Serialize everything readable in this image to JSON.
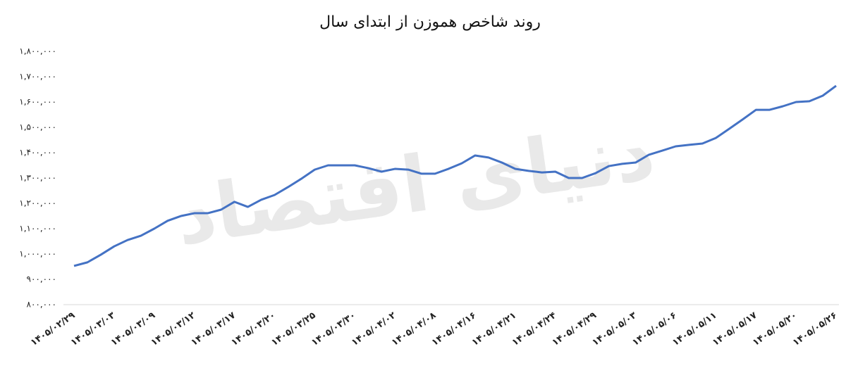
{
  "chart_data": {
    "type": "line",
    "title": "روند شاخص هموزن از ابتدای سال",
    "watermark": "دنیای اقتصاد",
    "categories": [
      "۱۴۰۵/۰۲/۲۹",
      null,
      null,
      "۱۴۰۵/۰۳/۰۳",
      null,
      null,
      "۱۴۰۵/۰۳/۰۹",
      null,
      null,
      "۱۴۰۵/۰۳/۱۲",
      null,
      null,
      "۱۴۰۵/۰۳/۱۷",
      null,
      null,
      "۱۴۰۵/۰۳/۲۰",
      null,
      null,
      "۱۴۰۵/۰۳/۲۵",
      null,
      null,
      "۱۴۰۵/۰۳/۳۰",
      null,
      null,
      "۱۴۰۵/۰۴/۰۲",
      null,
      null,
      "۱۴۰۵/۰۴/۰۸",
      null,
      null,
      "۱۴۰۵/۰۴/۱۶",
      null,
      null,
      "۱۴۰۵/۰۴/۲۱",
      null,
      null,
      "۱۴۰۵/۰۴/۲۴",
      null,
      null,
      "۱۴۰۵/۰۴/۲۹",
      null,
      null,
      "۱۴۰۵/۰۵/۰۳",
      null,
      null,
      "۱۴۰۵/۰۵/۰۶",
      null,
      null,
      "۱۴۰۵/۰۵/۱۱",
      null,
      null,
      "۱۴۰۵/۰۵/۱۷",
      null,
      null,
      "۱۴۰۵/۰۵/۲۰",
      null,
      null,
      "۱۴۰۵/۰۵/۲۶"
    ],
    "series": [
      {
        "color": "#4472c4",
        "values": [
          953000,
          967000,
          997000,
          1030000,
          1055000,
          1072000,
          1100000,
          1131000,
          1150000,
          1161000,
          1161000,
          1175000,
          1206000,
          1186000,
          1214000,
          1233000,
          1264000,
          1297000,
          1333000,
          1350000,
          1350000,
          1350000,
          1339000,
          1325000,
          1336000,
          1333000,
          1317000,
          1317000,
          1336000,
          1358000,
          1389000,
          1381000,
          1361000,
          1336000,
          1328000,
          1322000,
          1325000,
          1300000,
          1300000,
          1319000,
          1347000,
          1356000,
          1361000,
          1392000,
          1408000,
          1425000,
          1431000,
          1436000,
          1458000,
          1494000,
          1531000,
          1569000,
          1569000,
          1583000,
          1600000,
          1603000,
          1625000,
          1664000
        ]
      }
    ],
    "ylim": [
      800000,
      1800000
    ],
    "yticks": [
      {
        "value": 800000,
        "label": "۸۰۰,۰۰۰"
      },
      {
        "value": 900000,
        "label": "۹۰۰,۰۰۰"
      },
      {
        "value": 1000000,
        "label": "۱,۰۰۰,۰۰۰"
      },
      {
        "value": 1100000,
        "label": "۱,۱۰۰,۰۰۰"
      },
      {
        "value": 1200000,
        "label": "۱,۲۰۰,۰۰۰"
      },
      {
        "value": 1300000,
        "label": "۱,۳۰۰,۰۰۰"
      },
      {
        "value": 1400000,
        "label": "۱,۴۰۰,۰۰۰"
      },
      {
        "value": 1500000,
        "label": "۱,۵۰۰,۰۰۰"
      },
      {
        "value": 1600000,
        "label": "۱,۶۰۰,۰۰۰"
      },
      {
        "value": 1700000,
        "label": "۱,۷۰۰,۰۰۰"
      },
      {
        "value": 1800000,
        "label": "۱,۸۰۰,۰۰۰"
      }
    ],
    "grid": false
  }
}
